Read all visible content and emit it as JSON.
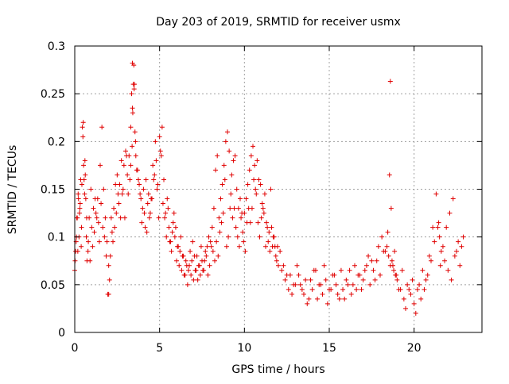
{
  "chart_data": {
    "type": "scatter",
    "title": "Day 203 of 2019, SRMTID for receiver usmx",
    "xlabel": "GPS time / hours",
    "ylabel": "SRMTID / TECUs",
    "xlim": [
      0,
      24
    ],
    "ylim": [
      0,
      0.3
    ],
    "x_ticks": [
      0,
      5,
      10,
      15,
      20
    ],
    "x_tick_labels": [
      "0",
      "5",
      "10",
      "15",
      "20"
    ],
    "y_ticks": [
      0,
      0.05,
      0.1,
      0.15,
      0.2,
      0.25,
      0.3
    ],
    "y_tick_labels": [
      "0",
      "0.05",
      "0.1",
      "0.15",
      "0.2",
      "0.25",
      "0.3"
    ],
    "grid": true,
    "marker": "+",
    "color": "#e00000",
    "series": [
      {
        "name": "SRMTID",
        "x": [
          0.0,
          0.05,
          0.1,
          0.15,
          0.2,
          0.25,
          0.3,
          0.35,
          0.4,
          0.45,
          0.5,
          0.55,
          0.6,
          0.65,
          0.7,
          0.8,
          0.9,
          1.0,
          1.1,
          1.2,
          1.3,
          1.4,
          1.5,
          1.6,
          1.7,
          1.8,
          1.9,
          2.0,
          2.0,
          2.1,
          2.2,
          2.3,
          2.4,
          2.5,
          2.6,
          2.7,
          2.8,
          2.9,
          3.0,
          3.1,
          3.2,
          3.3,
          3.35,
          3.4,
          3.45,
          3.5,
          3.55,
          3.6,
          3.7,
          3.8,
          3.9,
          4.0,
          4.1,
          4.2,
          4.3,
          4.4,
          4.5,
          4.6,
          4.7,
          4.8,
          4.9,
          5.0,
          5.1,
          5.2,
          5.3,
          5.4,
          5.5,
          5.6,
          5.7,
          5.8,
          5.9,
          6.0,
          6.1,
          6.2,
          6.3,
          6.4,
          6.5,
          6.6,
          6.7,
          6.8,
          6.9,
          7.0,
          7.1,
          7.2,
          7.3,
          7.4,
          7.5,
          7.6,
          7.7,
          7.8,
          7.9,
          8.0,
          8.1,
          8.2,
          8.3,
          8.4,
          8.5,
          8.6,
          8.7,
          8.8,
          8.9,
          9.0,
          9.1,
          9.2,
          9.3,
          9.4,
          9.5,
          9.6,
          9.7,
          9.8,
          9.9,
          10.0,
          10.1,
          10.2,
          10.3,
          10.4,
          10.5,
          10.6,
          10.7,
          10.8,
          10.9,
          11.0,
          11.1,
          11.2,
          11.3,
          11.4,
          11.5,
          11.6,
          11.7,
          11.8,
          11.9,
          12.0,
          12.2,
          12.4,
          12.6,
          12.8,
          13.0,
          13.2,
          13.4,
          13.6,
          13.8,
          14.0,
          14.2,
          14.4,
          14.6,
          14.8,
          15.0,
          15.2,
          15.4,
          15.6,
          15.8,
          16.0,
          16.2,
          16.4,
          16.6,
          16.8,
          17.0,
          17.2,
          17.4,
          17.6,
          17.8,
          18.0,
          18.2,
          18.4,
          18.5,
          18.6,
          18.7,
          18.8,
          18.9,
          19.0,
          19.2,
          19.4,
          19.6,
          19.8,
          20.0,
          20.2,
          20.4,
          20.6,
          20.8,
          21.0,
          21.2,
          21.4,
          21.5,
          21.6,
          21.8,
          22.0,
          22.2,
          22.4,
          22.6,
          22.8,
          0.02,
          0.08,
          0.12,
          0.18,
          0.22,
          0.28,
          0.32,
          0.38,
          0.42,
          0.48,
          0.52,
          0.58,
          0.62,
          0.68,
          0.72,
          0.78,
          0.85,
          0.95,
          1.05,
          1.15,
          1.25,
          1.35,
          1.45,
          1.55,
          1.65,
          1.75,
          1.85,
          1.95,
          2.05,
          2.15,
          2.25,
          2.35,
          2.45,
          2.55,
          2.65,
          2.75,
          2.85,
          2.95,
          3.05,
          3.15,
          3.25,
          3.3,
          3.38,
          3.42,
          3.48,
          3.52,
          3.58,
          3.65,
          3.75,
          3.85,
          3.95,
          4.05,
          4.15,
          4.25,
          4.35,
          4.45,
          4.55,
          4.65,
          4.75,
          4.85,
          4.95,
          5.05,
          5.15,
          5.25,
          5.35,
          5.45,
          5.55,
          5.65,
          5.75,
          5.85,
          5.95,
          6.05,
          6.15,
          6.25,
          6.35,
          6.45,
          6.55,
          6.65,
          6.75,
          6.85,
          6.95,
          7.05,
          7.15,
          7.25,
          7.35,
          7.45,
          7.55,
          7.65,
          7.75,
          7.85,
          7.95,
          8.05,
          8.15,
          8.25,
          8.35,
          8.45,
          8.55,
          8.65,
          8.75,
          8.85,
          8.95,
          9.05,
          9.15,
          9.25,
          9.35,
          9.45,
          9.55,
          9.65,
          9.75,
          9.85,
          9.95,
          10.05,
          10.15,
          10.25,
          10.35,
          10.45,
          10.55,
          10.65,
          10.75,
          10.85,
          10.95,
          11.05,
          11.15,
          11.25,
          11.35,
          11.45,
          11.55,
          11.65,
          11.75,
          11.85,
          11.95,
          12.1,
          12.3,
          12.5,
          12.7,
          12.9,
          13.1,
          13.3,
          13.5,
          13.7,
          13.9,
          14.1,
          14.3,
          14.5,
          14.7,
          14.9,
          15.1,
          15.3,
          15.5,
          15.7,
          15.9,
          16.1,
          16.3,
          16.5,
          16.7,
          16.9,
          17.1,
          17.3,
          17.5,
          17.7,
          17.9,
          18.1,
          18.3,
          18.45,
          18.55,
          18.65,
          18.75,
          18.85,
          18.95,
          19.1,
          19.3,
          19.5,
          19.7,
          19.9,
          20.1,
          20.3,
          20.5,
          20.7,
          20.9,
          21.1,
          21.3,
          21.45,
          21.55,
          21.7,
          21.9,
          22.1,
          22.3,
          22.5,
          22.7,
          22.9
        ],
        "y": [
          0.065,
          0.085,
          0.1,
          0.12,
          0.145,
          0.1,
          0.13,
          0.16,
          0.11,
          0.215,
          0.22,
          0.16,
          0.18,
          0.14,
          0.12,
          0.095,
          0.075,
          0.11,
          0.13,
          0.14,
          0.12,
          0.115,
          0.175,
          0.215,
          0.15,
          0.12,
          0.095,
          0.07,
          0.04,
          0.08,
          0.105,
          0.13,
          0.155,
          0.165,
          0.135,
          0.12,
          0.145,
          0.175,
          0.19,
          0.165,
          0.185,
          0.215,
          0.25,
          0.235,
          0.26,
          0.255,
          0.21,
          0.185,
          0.17,
          0.155,
          0.14,
          0.13,
          0.125,
          0.16,
          0.135,
          0.12,
          0.14,
          0.175,
          0.165,
          0.18,
          0.155,
          0.205,
          0.185,
          0.135,
          0.12,
          0.1,
          0.13,
          0.095,
          0.085,
          0.115,
          0.1,
          0.075,
          0.09,
          0.085,
          0.065,
          0.08,
          0.06,
          0.07,
          0.065,
          0.085,
          0.075,
          0.055,
          0.065,
          0.08,
          0.07,
          0.06,
          0.075,
          0.065,
          0.085,
          0.09,
          0.1,
          0.095,
          0.11,
          0.13,
          0.17,
          0.185,
          0.12,
          0.14,
          0.155,
          0.175,
          0.2,
          0.21,
          0.19,
          0.145,
          0.12,
          0.13,
          0.11,
          0.1,
          0.09,
          0.12,
          0.105,
          0.125,
          0.14,
          0.155,
          0.17,
          0.185,
          0.195,
          0.175,
          0.145,
          0.115,
          0.1,
          0.12,
          0.13,
          0.145,
          0.115,
          0.095,
          0.085,
          0.11,
          0.1,
          0.09,
          0.075,
          0.07,
          0.065,
          0.055,
          0.045,
          0.04,
          0.05,
          0.06,
          0.045,
          0.055,
          0.035,
          0.045,
          0.065,
          0.05,
          0.04,
          0.055,
          0.045,
          0.06,
          0.05,
          0.035,
          0.045,
          0.055,
          0.065,
          0.05,
          0.045,
          0.06,
          0.055,
          0.07,
          0.05,
          0.065,
          0.075,
          0.06,
          0.085,
          0.09,
          0.08,
          0.07,
          0.075,
          0.065,
          0.06,
          0.055,
          0.045,
          0.035,
          0.05,
          0.04,
          0.03,
          0.045,
          0.035,
          0.045,
          0.06,
          0.075,
          0.095,
          0.11,
          0.1,
          0.085,
          0.075,
          0.065,
          0.055,
          0.08,
          0.095,
          0.09,
          0.075,
          0.095,
          0.12,
          0.085,
          0.14,
          0.125,
          0.135,
          0.09,
          0.155,
          0.205,
          0.175,
          0.145,
          0.165,
          0.1,
          0.075,
          0.085,
          0.12,
          0.15,
          0.09,
          0.105,
          0.125,
          0.14,
          0.095,
          0.135,
          0.11,
          0.1,
          0.08,
          0.04,
          0.055,
          0.12,
          0.095,
          0.11,
          0.125,
          0.145,
          0.155,
          0.18,
          0.15,
          0.12,
          0.185,
          0.145,
          0.16,
          0.175,
          0.195,
          0.23,
          0.28,
          0.26,
          0.2,
          0.17,
          0.16,
          0.145,
          0.115,
          0.15,
          0.11,
          0.105,
          0.145,
          0.125,
          0.14,
          0.16,
          0.2,
          0.15,
          0.12,
          0.19,
          0.215,
          0.16,
          0.125,
          0.14,
          0.11,
          0.095,
          0.105,
          0.125,
          0.11,
          0.09,
          0.07,
          0.1,
          0.08,
          0.06,
          0.075,
          0.05,
          0.07,
          0.06,
          0.095,
          0.08,
          0.065,
          0.055,
          0.07,
          0.09,
          0.065,
          0.075,
          0.08,
          0.06,
          0.07,
          0.09,
          0.085,
          0.075,
          0.095,
          0.08,
          0.105,
          0.115,
          0.125,
          0.16,
          0.09,
          0.1,
          0.13,
          0.165,
          0.18,
          0.185,
          0.15,
          0.13,
          0.14,
          0.125,
          0.095,
          0.085,
          0.115,
          0.13,
          0.115,
          0.13,
          0.16,
          0.15,
          0.18,
          0.16,
          0.155,
          0.135,
          0.125,
          0.09,
          0.11,
          0.105,
          0.15,
          0.09,
          0.1,
          0.08,
          0.09,
          0.085,
          0.07,
          0.06,
          0.06,
          0.05,
          0.07,
          0.05,
          0.04,
          0.03,
          0.055,
          0.065,
          0.035,
          0.05,
          0.07,
          0.03,
          0.045,
          0.06,
          0.04,
          0.065,
          0.035,
          0.05,
          0.04,
          0.07,
          0.06,
          0.045,
          0.065,
          0.08,
          0.075,
          0.055,
          0.09,
          0.1,
          0.085,
          0.105,
          0.165,
          0.13,
          0.07,
          0.085,
          0.06,
          0.045,
          0.065,
          0.025,
          0.045,
          0.055,
          0.02,
          0.05,
          0.065,
          0.055,
          0.08,
          0.11,
          0.145,
          0.115,
          0.07,
          0.09,
          0.11,
          0.125,
          0.14,
          0.085,
          0.07,
          0.1
        ]
      }
    ],
    "annotations": [
      {
        "x": 18.6,
        "y": 0.263
      },
      {
        "x": 3.4,
        "y": 0.282
      }
    ]
  }
}
